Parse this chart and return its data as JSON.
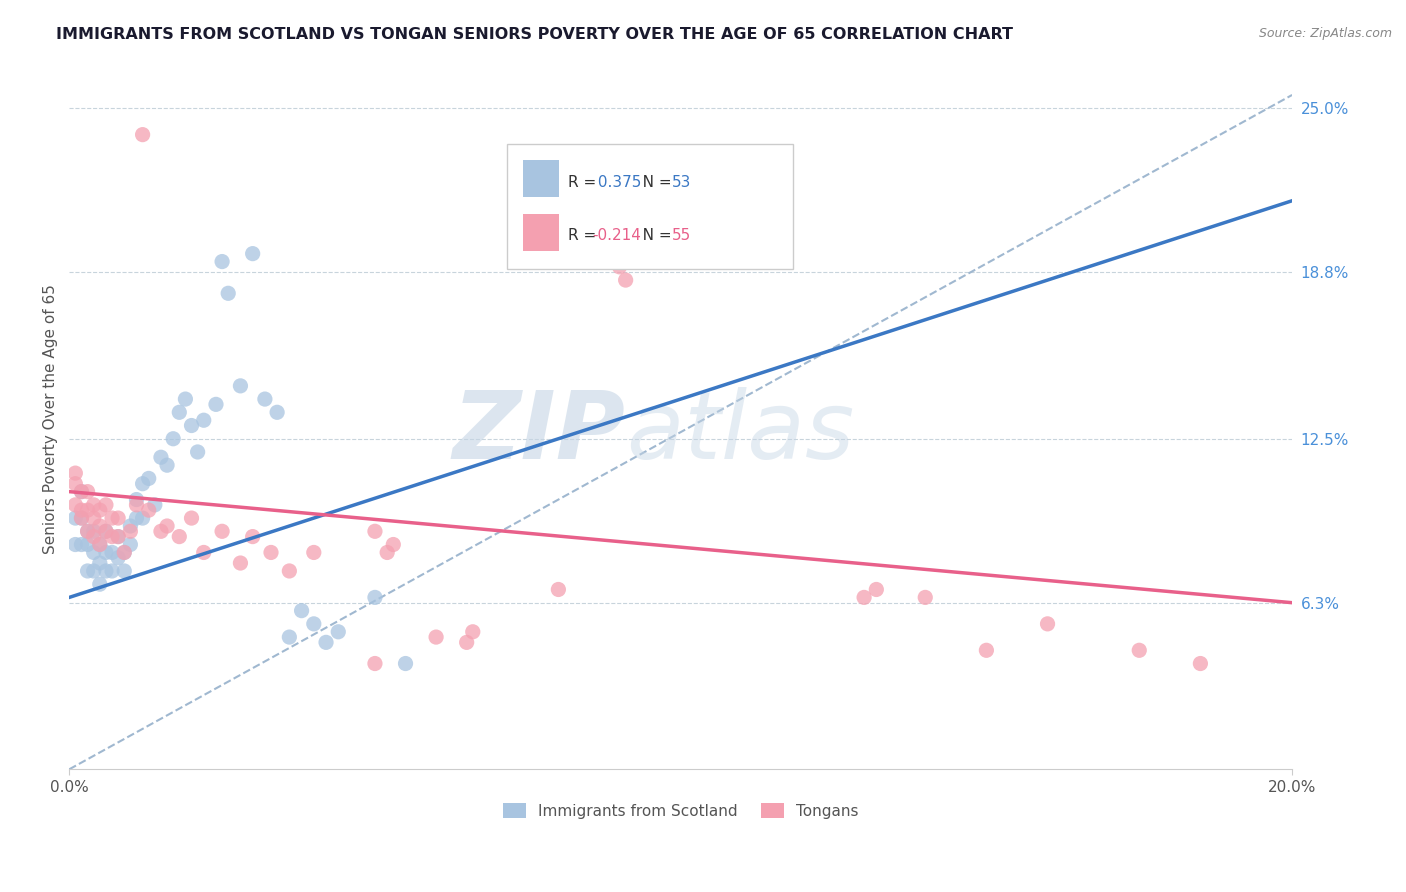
{
  "title": "IMMIGRANTS FROM SCOTLAND VS TONGAN SENIORS POVERTY OVER THE AGE OF 65 CORRELATION CHART",
  "source": "Source: ZipAtlas.com",
  "ylabel": "Seniors Poverty Over the Age of 65",
  "xlim": [
    0.0,
    0.2
  ],
  "ylim": [
    0.0,
    0.265
  ],
  "ytick_labels_right": [
    "25.0%",
    "18.8%",
    "12.5%",
    "6.3%"
  ],
  "ytick_vals_right": [
    0.25,
    0.188,
    0.125,
    0.063
  ],
  "scotland_R": 0.375,
  "scotland_N": 53,
  "tongan_R": -0.214,
  "tongan_N": 55,
  "scotland_color": "#a8c4e0",
  "tongan_color": "#f4a0b0",
  "scotland_line_color": "#3b78c4",
  "tongan_line_color": "#e8608a",
  "legend_label_scotland": "Immigrants from Scotland",
  "legend_label_tongan": "Tongans",
  "scot_line_x0": 0.0,
  "scot_line_y0": 0.065,
  "scot_line_x1": 0.2,
  "scot_line_y1": 0.215,
  "tong_line_x0": 0.0,
  "tong_line_y0": 0.105,
  "tong_line_x1": 0.2,
  "tong_line_y1": 0.063,
  "dash_line_x0": 0.0,
  "dash_line_y0": 0.0,
  "dash_line_x1": 0.2,
  "dash_line_y1": 0.255,
  "scotland_x": [
    0.001,
    0.001,
    0.002,
    0.002,
    0.002,
    0.003,
    0.003,
    0.003,
    0.004,
    0.004,
    0.004,
    0.005,
    0.005,
    0.005,
    0.006,
    0.006,
    0.006,
    0.007,
    0.007,
    0.008,
    0.008,
    0.009,
    0.009,
    0.01,
    0.01,
    0.011,
    0.011,
    0.012,
    0.012,
    0.013,
    0.014,
    0.015,
    0.016,
    0.017,
    0.018,
    0.019,
    0.02,
    0.021,
    0.022,
    0.024,
    0.025,
    0.026,
    0.028,
    0.03,
    0.032,
    0.034,
    0.036,
    0.038,
    0.04,
    0.042,
    0.044,
    0.05,
    0.055
  ],
  "scotland_y": [
    0.095,
    0.085,
    0.105,
    0.095,
    0.085,
    0.09,
    0.085,
    0.075,
    0.09,
    0.082,
    0.075,
    0.085,
    0.078,
    0.07,
    0.082,
    0.09,
    0.075,
    0.082,
    0.075,
    0.088,
    0.08,
    0.082,
    0.075,
    0.092,
    0.085,
    0.095,
    0.102,
    0.108,
    0.095,
    0.11,
    0.1,
    0.118,
    0.115,
    0.125,
    0.135,
    0.14,
    0.13,
    0.12,
    0.132,
    0.138,
    0.192,
    0.18,
    0.145,
    0.195,
    0.14,
    0.135,
    0.05,
    0.06,
    0.055,
    0.048,
    0.052,
    0.065,
    0.04
  ],
  "tongan_x": [
    0.001,
    0.001,
    0.001,
    0.002,
    0.002,
    0.002,
    0.003,
    0.003,
    0.003,
    0.004,
    0.004,
    0.004,
    0.005,
    0.005,
    0.005,
    0.006,
    0.006,
    0.007,
    0.007,
    0.008,
    0.008,
    0.009,
    0.01,
    0.011,
    0.012,
    0.013,
    0.015,
    0.016,
    0.018,
    0.02,
    0.022,
    0.025,
    0.028,
    0.03,
    0.033,
    0.036,
    0.04,
    0.05,
    0.052,
    0.053,
    0.06,
    0.065,
    0.066,
    0.08,
    0.082,
    0.09,
    0.091,
    0.13,
    0.132,
    0.14,
    0.15,
    0.16,
    0.175,
    0.185,
    0.05
  ],
  "tongan_y": [
    0.108,
    0.1,
    0.112,
    0.098,
    0.105,
    0.095,
    0.09,
    0.098,
    0.105,
    0.088,
    0.095,
    0.1,
    0.092,
    0.085,
    0.098,
    0.09,
    0.1,
    0.088,
    0.095,
    0.088,
    0.095,
    0.082,
    0.09,
    0.1,
    0.24,
    0.098,
    0.09,
    0.092,
    0.088,
    0.095,
    0.082,
    0.09,
    0.078,
    0.088,
    0.082,
    0.075,
    0.082,
    0.09,
    0.082,
    0.085,
    0.05,
    0.048,
    0.052,
    0.068,
    0.195,
    0.19,
    0.185,
    0.065,
    0.068,
    0.065,
    0.045,
    0.055,
    0.045,
    0.04,
    0.04
  ]
}
